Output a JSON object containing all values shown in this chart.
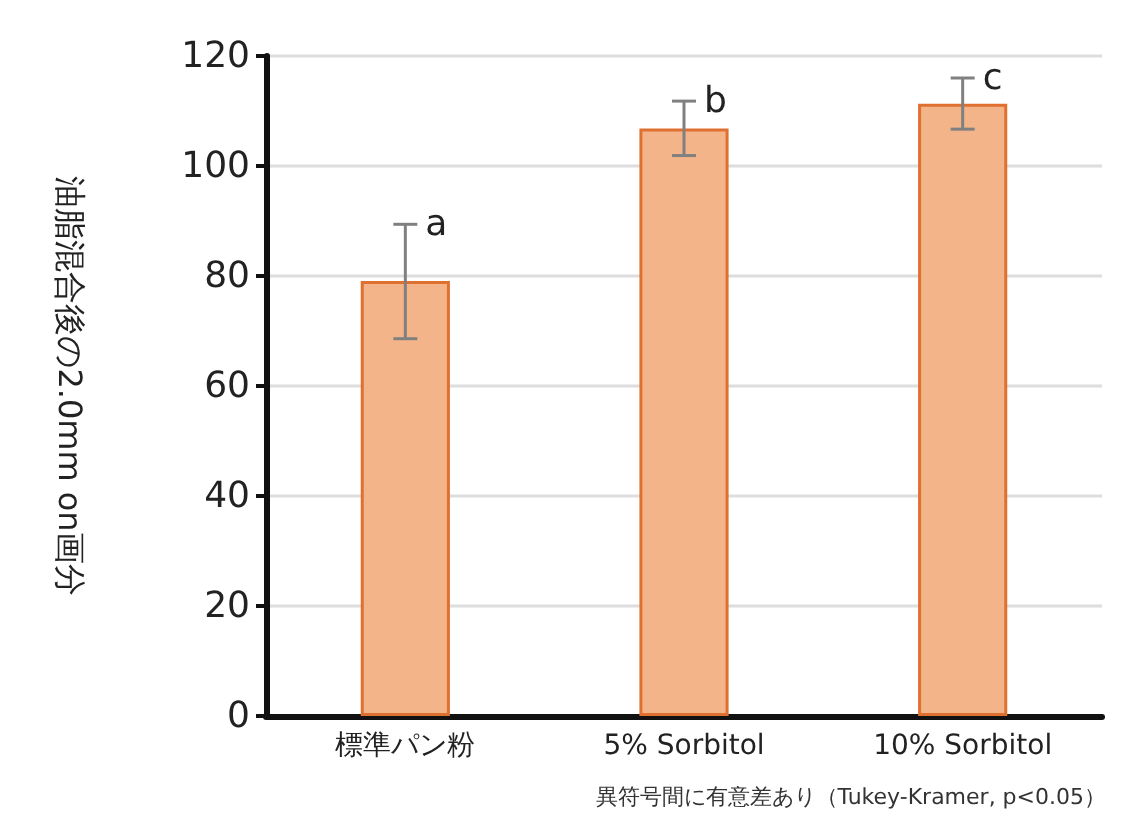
{
  "chart_data": {
    "type": "bar",
    "ylabel": "油脂混合後の2.0mm on画分",
    "categories": [
      "標準パン粉",
      "5% Sorbitol",
      "10% Sorbitol"
    ],
    "values": [
      79.1,
      106.8,
      111.3
    ],
    "errors": [
      [
        68.6,
        89.4
      ],
      [
        101.9,
        111.8
      ],
      [
        106.7,
        116.0
      ]
    ],
    "color": "#f4b48a",
    "ylim": [
      0,
      120
    ],
    "yticks": [
      0,
      20,
      40,
      60,
      80,
      100,
      120
    ],
    "grid": "y",
    "annotations": [
      {
        "text": "a",
        "x": "標準パン粉",
        "y": 89.4
      },
      {
        "text": "b",
        "x": "5% Sorbitol",
        "y": 111.8
      },
      {
        "text": "c",
        "x": "10% Sorbitol",
        "y": 116.0
      },
      "異符号間に有意差あり（Tukey-Kramer, p<0.05）"
    ]
  }
}
